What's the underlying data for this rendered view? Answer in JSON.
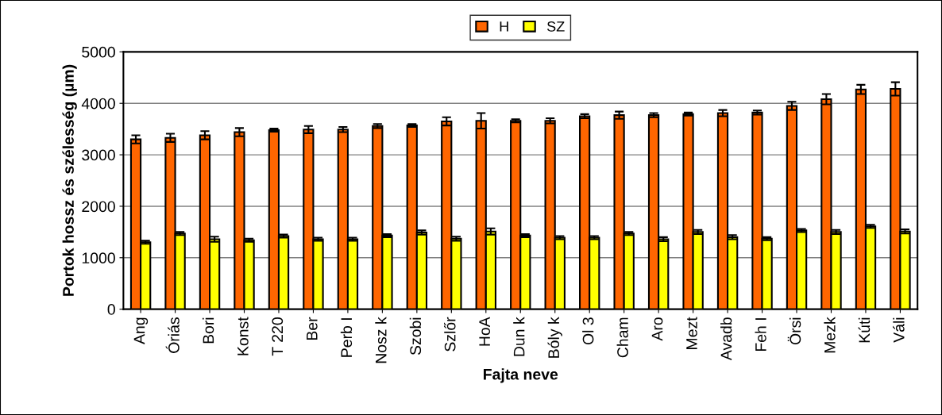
{
  "chart_data": {
    "type": "bar",
    "xlabel": "Fajta neve",
    "ylabel": "Portok hossz és szélesség (µm)",
    "categories": [
      "Ang",
      "Óriás",
      "Bori",
      "Konst",
      "T 220",
      "Ber",
      "Perb I",
      "Nosz k",
      "Szobi",
      "Szlőr",
      "HoA",
      "Dun k",
      "Bóly k",
      "Ol 3",
      "Cham",
      "Aro",
      "Mezt",
      "Avadb",
      "Feh I",
      "Örsi",
      "Mezk",
      "Kúti",
      "Váli"
    ],
    "series": [
      {
        "name": "H",
        "color": "#ff6600",
        "values": [
          3300,
          3330,
          3380,
          3440,
          3480,
          3490,
          3490,
          3560,
          3570,
          3650,
          3660,
          3660,
          3660,
          3750,
          3770,
          3770,
          3790,
          3810,
          3820,
          3950,
          4080,
          4270,
          4280
        ],
        "errors": [
          80,
          80,
          80,
          80,
          30,
          70,
          50,
          40,
          30,
          80,
          150,
          30,
          50,
          40,
          70,
          40,
          30,
          60,
          40,
          80,
          100,
          90,
          130
        ]
      },
      {
        "name": "SZ",
        "color": "#ffff00",
        "values": [
          1300,
          1470,
          1360,
          1340,
          1420,
          1360,
          1360,
          1430,
          1490,
          1370,
          1510,
          1430,
          1390,
          1390,
          1470,
          1360,
          1500,
          1400,
          1370,
          1530,
          1500,
          1610,
          1510
        ],
        "errors": [
          30,
          30,
          50,
          30,
          30,
          30,
          30,
          30,
          40,
          40,
          60,
          30,
          30,
          30,
          30,
          40,
          40,
          40,
          30,
          30,
          40,
          30,
          40
        ]
      }
    ],
    "ylim": [
      0,
      5000
    ],
    "yticks": [
      0,
      1000,
      2000,
      3000,
      4000,
      5000
    ],
    "grid": "y",
    "legend": "top"
  }
}
